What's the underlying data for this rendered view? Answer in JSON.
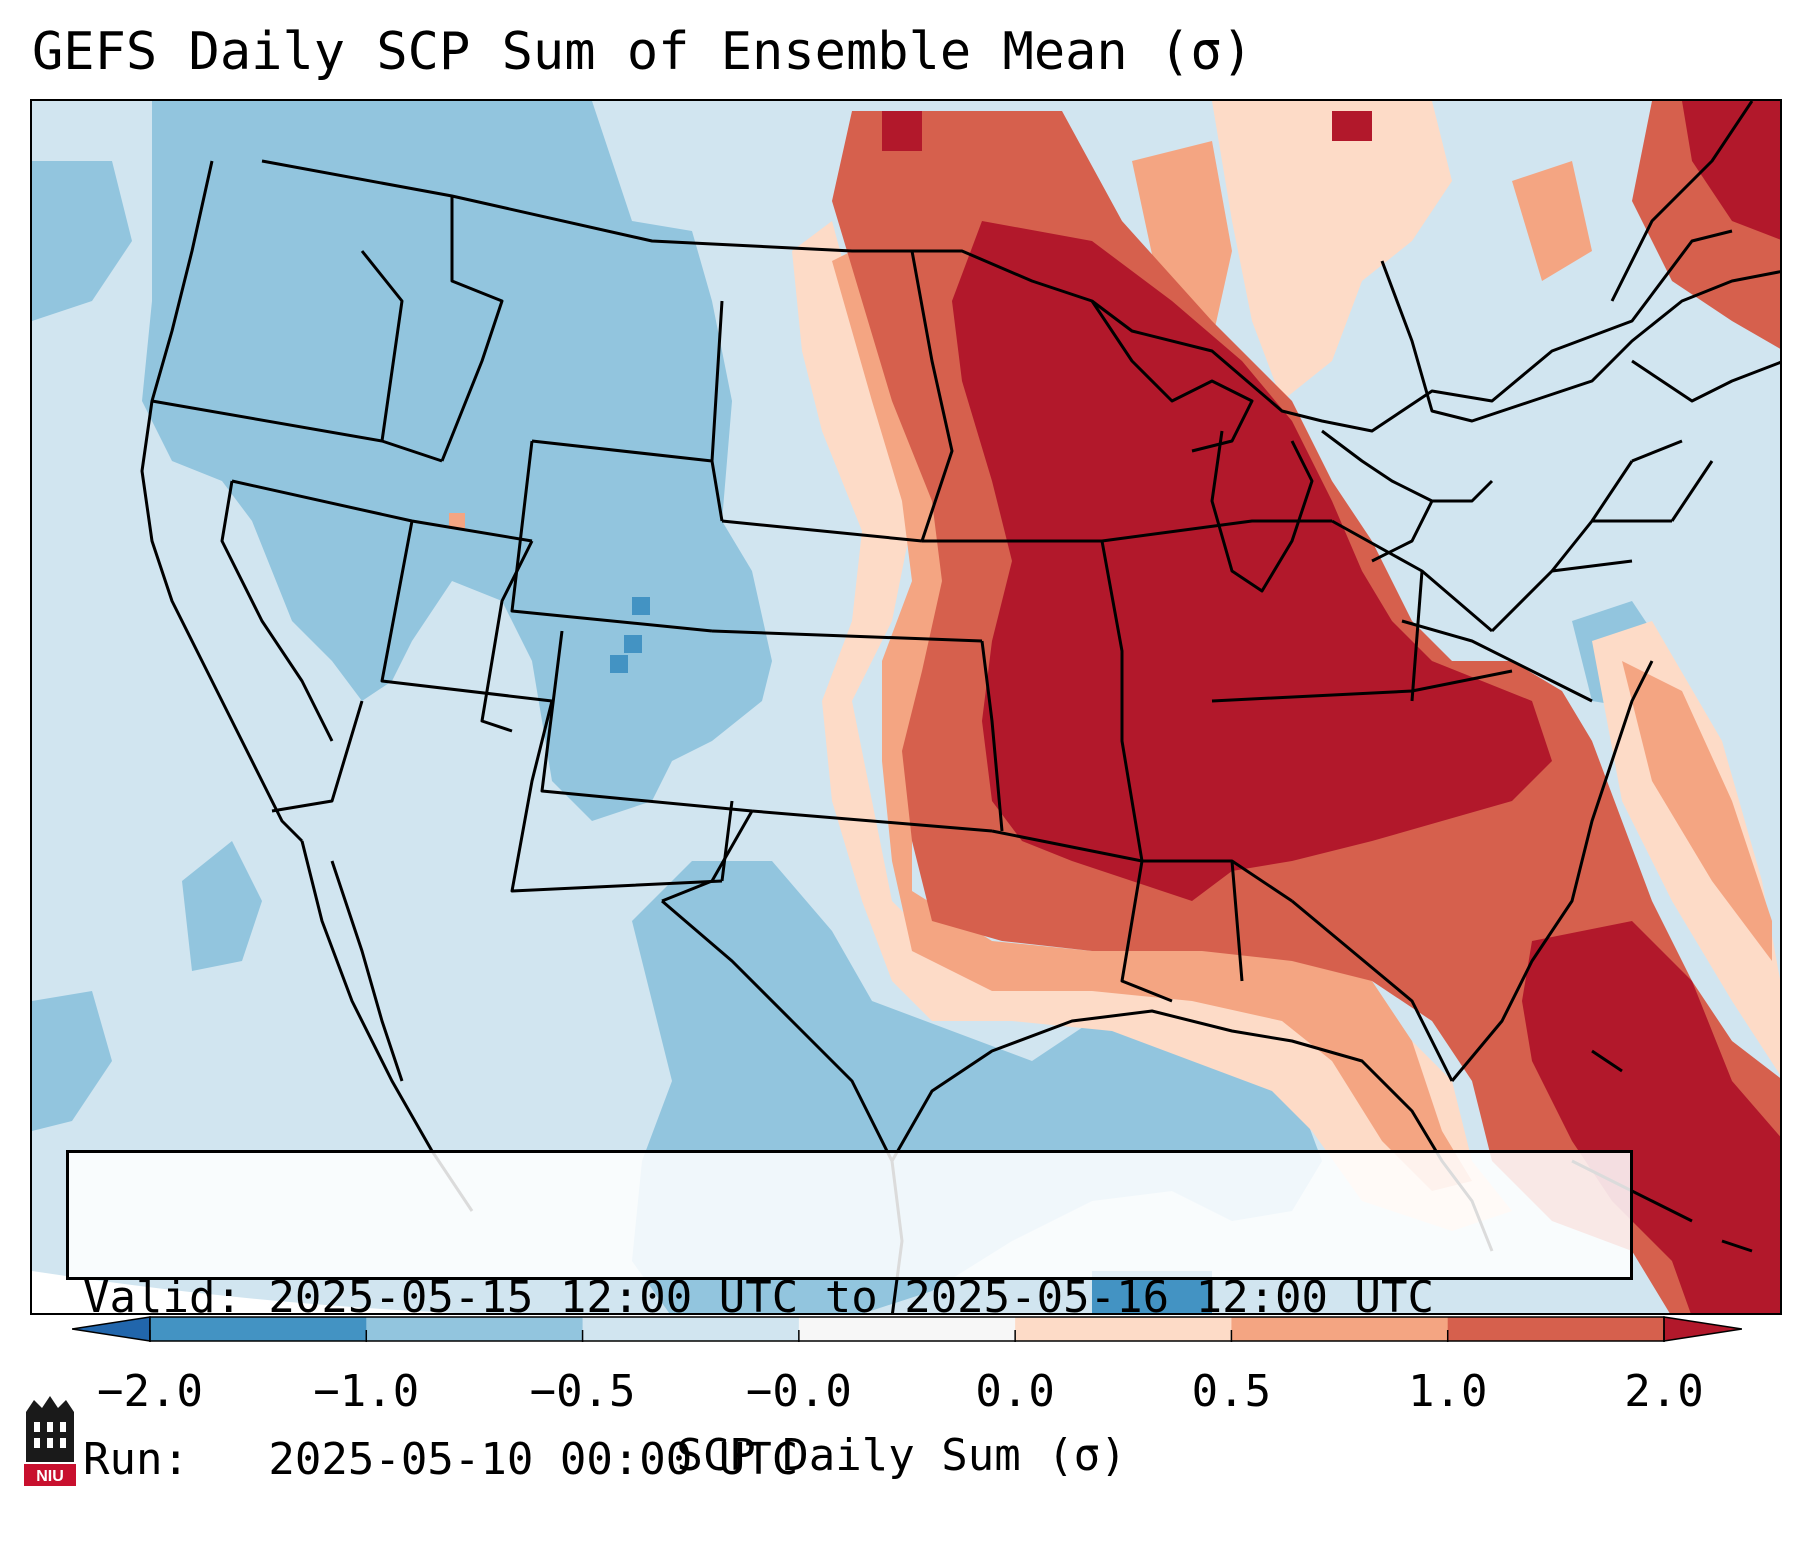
{
  "title": "GEFS Daily SCP Sum of Ensemble Mean (σ)",
  "info": {
    "valid_line": "Valid: 2025-05-15 12:00 UTC to 2025-05-16 12:00 UTC",
    "run_line": "Run:   2025-05-10 00:00 UTC"
  },
  "colorbar": {
    "label": "SCP Daily Sum (σ)",
    "ticks": [
      "−2.0",
      "−1.0",
      "−0.5",
      "−0.0",
      "0.0",
      "0.5",
      "1.0",
      "2.0"
    ],
    "bins": [
      {
        "from": "−2.0",
        "to": "−1.0",
        "color": "#4393c3"
      },
      {
        "from": "−1.0",
        "to": "−0.5",
        "color": "#92c5de"
      },
      {
        "from": "−0.5",
        "to": "−0.0",
        "color": "#d1e5f0"
      },
      {
        "from": "−0.0",
        "to": "0.0",
        "color": "#f7f7f7"
      },
      {
        "from": "0.0",
        "to": "0.5",
        "color": "#fddbc7"
      },
      {
        "from": "0.5",
        "to": "1.0",
        "color": "#f4a582"
      },
      {
        "from": "1.0",
        "to": "2.0",
        "color": "#d6604d"
      }
    ],
    "under_color": "#2166ac",
    "over_color": "#b2182b"
  },
  "map": {
    "background_color": "#d1e5f0",
    "anomaly_regions": [
      {
        "area": "Northern and central Plains to Upper Midwest",
        "level_sigma": 1.0
      },
      {
        "area": "Mid-Mississippi and Ohio Valleys",
        "level_sigma": 2.0
      },
      {
        "area": "Southeast and western Atlantic",
        "level_sigma": 2.0
      },
      {
        "area": "Western US and Gulf of Mexico",
        "level_sigma": -0.5
      }
    ]
  },
  "logo": {
    "text": "NIU",
    "color": "#c8102e"
  }
}
